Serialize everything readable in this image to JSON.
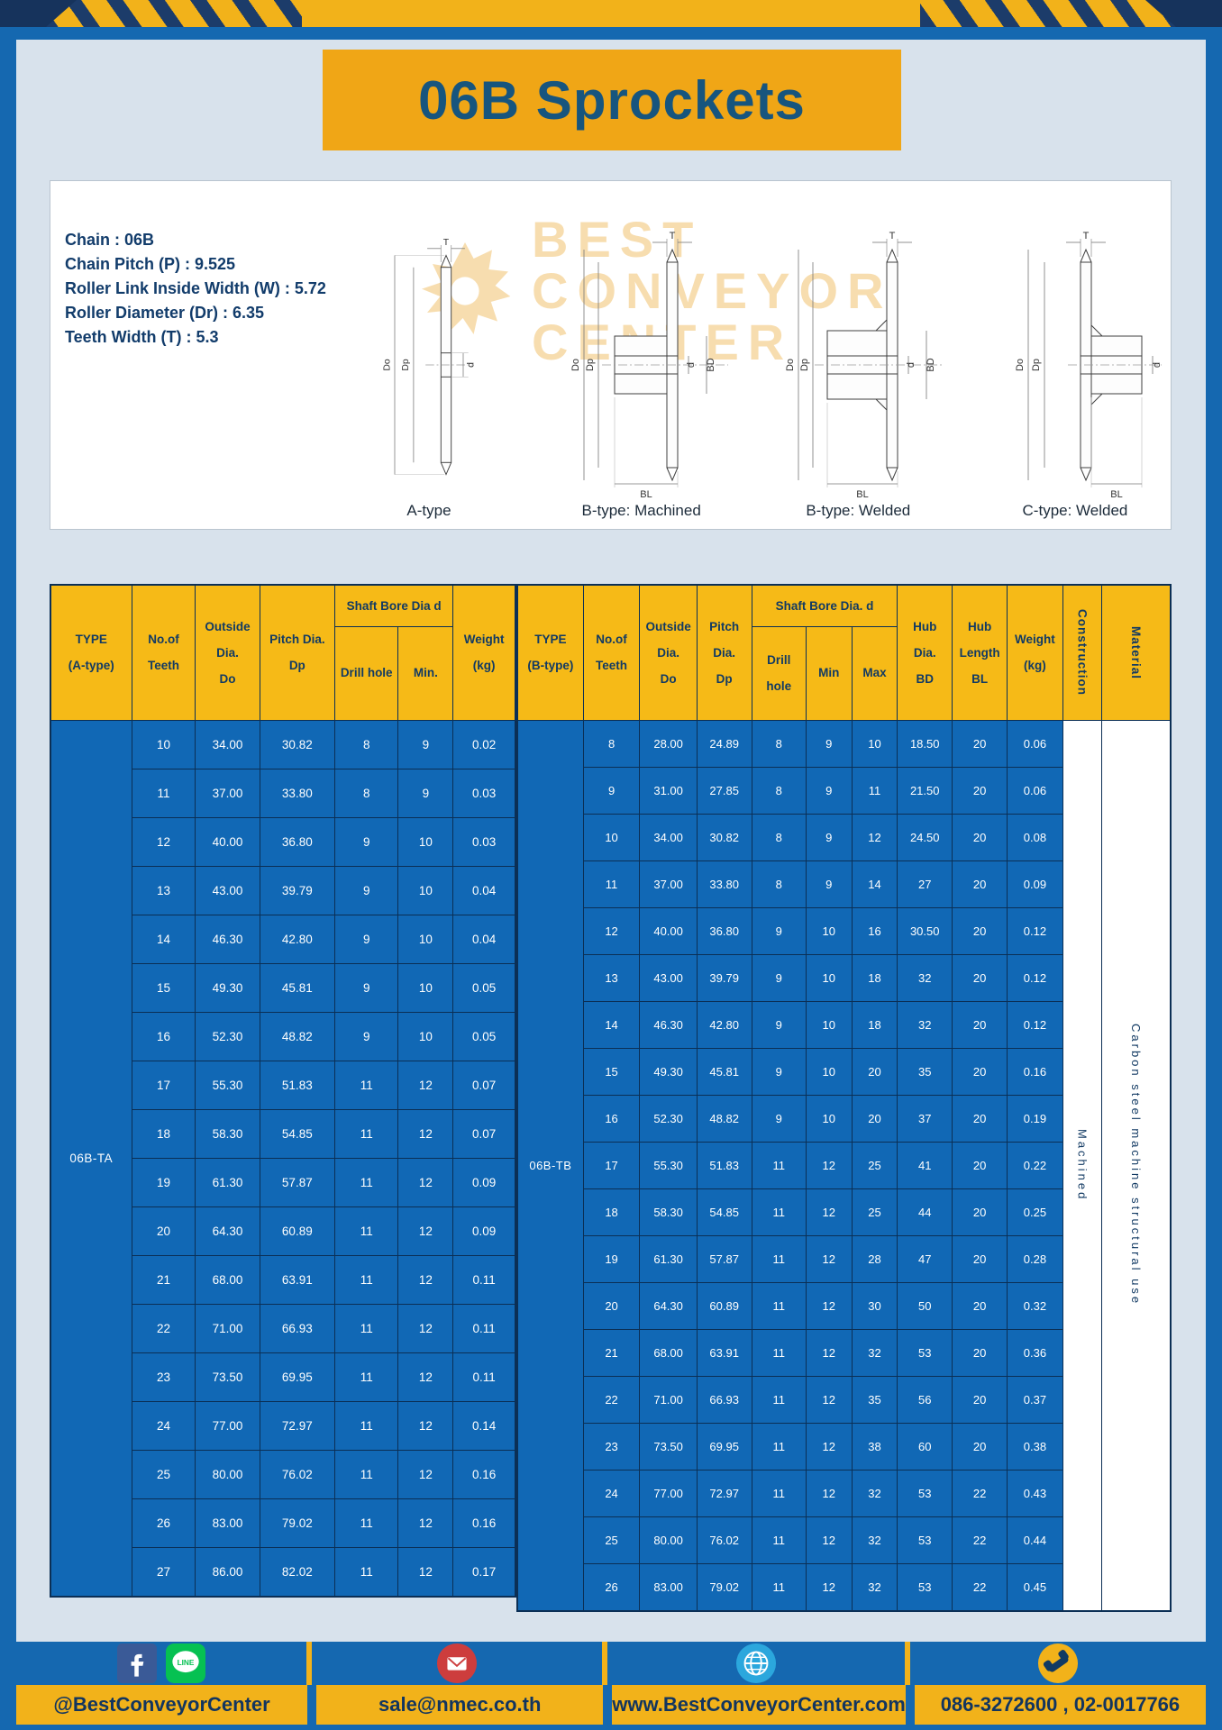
{
  "title": "06B Sprockets",
  "colors": {
    "accent_yellow": "#f2b21a",
    "banner_orange": "#f0a616",
    "frame_blue": "#1568b0",
    "table_blue": "#1168b5",
    "navy_text": "#123a63"
  },
  "specs": [
    "Chain : 06B",
    "Chain Pitch (P) : 9.525",
    "Roller Link Inside Width (W) : 5.72",
    "Roller Diameter (Dr) : 6.35",
    "Teeth Width (T) : 5.3"
  ],
  "dims": {
    "t": "T",
    "do": "Do",
    "dp": "Dp",
    "d": "d",
    "bd": "BD",
    "bl": "BL"
  },
  "watermark": {
    "lines": [
      "BEST",
      "CONVEYOR",
      "CENTER"
    ]
  },
  "diagrams": {
    "captions": [
      "A-type",
      "B-type: Machined",
      "B-type: Welded",
      "C-type: Welded"
    ]
  },
  "table_a": {
    "type_value": "06B-TA",
    "headers": {
      "type": "TYPE\n(A-type)",
      "teeth": "No.of\nTeeth",
      "outside": "Outside\nDia.\nDo",
      "pitch": "Pitch Dia.\nDp",
      "bore_group": "Shaft Bore Dia d",
      "drill": "Drill hole",
      "min": "Min.",
      "weight": "Weight\n(kg)"
    },
    "rows": [
      [
        "10",
        "34.00",
        "30.82",
        "8",
        "9",
        "0.02"
      ],
      [
        "11",
        "37.00",
        "33.80",
        "8",
        "9",
        "0.03"
      ],
      [
        "12",
        "40.00",
        "36.80",
        "9",
        "10",
        "0.03"
      ],
      [
        "13",
        "43.00",
        "39.79",
        "9",
        "10",
        "0.04"
      ],
      [
        "14",
        "46.30",
        "42.80",
        "9",
        "10",
        "0.04"
      ],
      [
        "15",
        "49.30",
        "45.81",
        "9",
        "10",
        "0.05"
      ],
      [
        "16",
        "52.30",
        "48.82",
        "9",
        "10",
        "0.05"
      ],
      [
        "17",
        "55.30",
        "51.83",
        "11",
        "12",
        "0.07"
      ],
      [
        "18",
        "58.30",
        "54.85",
        "11",
        "12",
        "0.07"
      ],
      [
        "19",
        "61.30",
        "57.87",
        "11",
        "12",
        "0.09"
      ],
      [
        "20",
        "64.30",
        "60.89",
        "11",
        "12",
        "0.09"
      ],
      [
        "21",
        "68.00",
        "63.91",
        "11",
        "12",
        "0.11"
      ],
      [
        "22",
        "71.00",
        "66.93",
        "11",
        "12",
        "0.11"
      ],
      [
        "23",
        "73.50",
        "69.95",
        "11",
        "12",
        "0.11"
      ],
      [
        "24",
        "77.00",
        "72.97",
        "11",
        "12",
        "0.14"
      ],
      [
        "25",
        "80.00",
        "76.02",
        "11",
        "12",
        "0.16"
      ],
      [
        "26",
        "83.00",
        "79.02",
        "11",
        "12",
        "0.16"
      ],
      [
        "27",
        "86.00",
        "82.02",
        "11",
        "12",
        "0.17"
      ]
    ]
  },
  "table_b": {
    "type_value": "06B-TB",
    "construction_value": "Machined",
    "material_value": "Carbon steel machine structural use",
    "headers": {
      "type": "TYPE\n(B-type)",
      "teeth": "No.of\nTeeth",
      "outside": "Outside\nDia.\nDo",
      "pitch": "Pitch\nDia.\nDp",
      "bore_group": "Shaft Bore Dia. d",
      "drill": "Drill hole",
      "min": "Min",
      "max": "Max",
      "hub_dia": "Hub\nDia.\nBD",
      "hub_len": "Hub\nLength\nBL",
      "weight": "Weight\n(kg)",
      "construction": "Construction",
      "material": "Material"
    },
    "rows": [
      [
        "8",
        "28.00",
        "24.89",
        "8",
        "9",
        "10",
        "18.50",
        "20",
        "0.06"
      ],
      [
        "9",
        "31.00",
        "27.85",
        "8",
        "9",
        "11",
        "21.50",
        "20",
        "0.06"
      ],
      [
        "10",
        "34.00",
        "30.82",
        "8",
        "9",
        "12",
        "24.50",
        "20",
        "0.08"
      ],
      [
        "11",
        "37.00",
        "33.80",
        "8",
        "9",
        "14",
        "27",
        "20",
        "0.09"
      ],
      [
        "12",
        "40.00",
        "36.80",
        "9",
        "10",
        "16",
        "30.50",
        "20",
        "0.12"
      ],
      [
        "13",
        "43.00",
        "39.79",
        "9",
        "10",
        "18",
        "32",
        "20",
        "0.12"
      ],
      [
        "14",
        "46.30",
        "42.80",
        "9",
        "10",
        "18",
        "32",
        "20",
        "0.12"
      ],
      [
        "15",
        "49.30",
        "45.81",
        "9",
        "10",
        "20",
        "35",
        "20",
        "0.16"
      ],
      [
        "16",
        "52.30",
        "48.82",
        "9",
        "10",
        "20",
        "37",
        "20",
        "0.19"
      ],
      [
        "17",
        "55.30",
        "51.83",
        "11",
        "12",
        "25",
        "41",
        "20",
        "0.22"
      ],
      [
        "18",
        "58.30",
        "54.85",
        "11",
        "12",
        "25",
        "44",
        "20",
        "0.25"
      ],
      [
        "19",
        "61.30",
        "57.87",
        "11",
        "12",
        "28",
        "47",
        "20",
        "0.28"
      ],
      [
        "20",
        "64.30",
        "60.89",
        "11",
        "12",
        "30",
        "50",
        "20",
        "0.32"
      ],
      [
        "21",
        "68.00",
        "63.91",
        "11",
        "12",
        "32",
        "53",
        "20",
        "0.36"
      ],
      [
        "22",
        "71.00",
        "66.93",
        "11",
        "12",
        "35",
        "56",
        "20",
        "0.37"
      ],
      [
        "23",
        "73.50",
        "69.95",
        "11",
        "12",
        "38",
        "60",
        "20",
        "0.38"
      ],
      [
        "24",
        "77.00",
        "72.97",
        "11",
        "12",
        "32",
        "53",
        "22",
        "0.43"
      ],
      [
        "25",
        "80.00",
        "76.02",
        "11",
        "12",
        "32",
        "53",
        "22",
        "0.44"
      ],
      [
        "26",
        "83.00",
        "79.02",
        "11",
        "12",
        "32",
        "53",
        "22",
        "0.45"
      ]
    ]
  },
  "footer": {
    "facebook_handle": "@BestConveyorCenter",
    "email": "sale@nmec.co.th",
    "website": "www.BestConveyorCenter.com",
    "phone": "086-3272600 , 02-0017766",
    "line_label": "LINE"
  }
}
